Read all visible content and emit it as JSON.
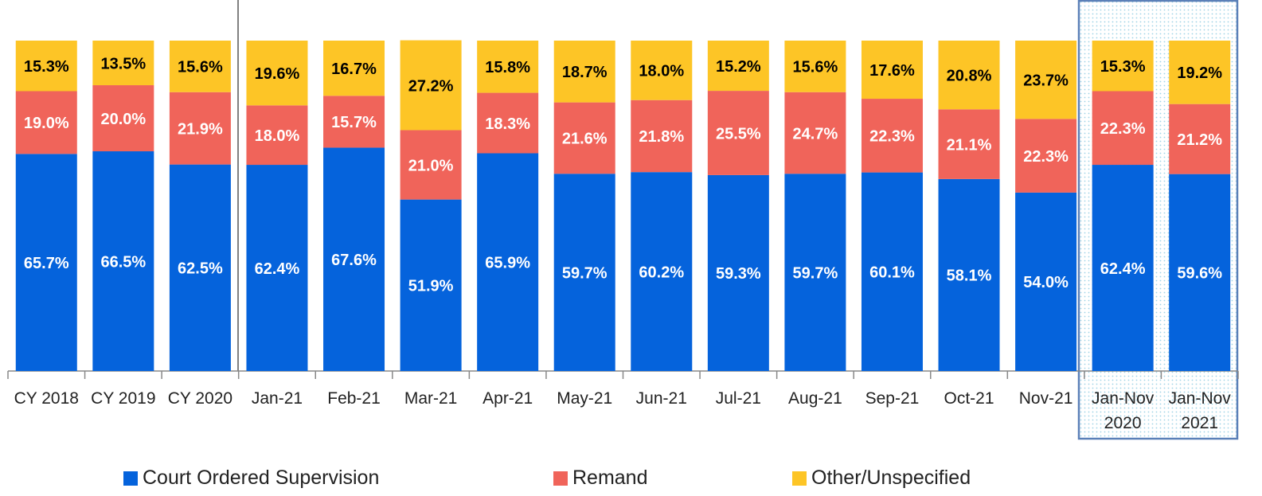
{
  "chart_data": {
    "type": "stacked_bar",
    "categories": [
      "CY 2018",
      "CY 2019",
      "CY 2020",
      "Jan-21",
      "Feb-21",
      "Mar-21",
      "Apr-21",
      "May-21",
      "Jun-21",
      "Jul-21",
      "Aug-21",
      "Sep-21",
      "Oct-21",
      "Nov-21",
      "Jan-Nov 2020",
      "Jan-Nov 2021"
    ],
    "ylim": [
      0,
      100
    ],
    "legend": "bottom",
    "series": [
      {
        "name": "Court Ordered Supervision",
        "color": "#0563dc",
        "values": [
          65.7,
          66.5,
          62.5,
          62.4,
          67.6,
          51.9,
          65.9,
          59.7,
          60.2,
          59.3,
          59.7,
          60.1,
          58.1,
          54.0,
          62.4,
          59.6
        ],
        "value_labels": [
          "65.7%",
          "66.5%",
          "62.5%",
          "62.4%",
          "67.6%",
          "51.9%",
          "65.9%",
          "59.7%",
          "60.2%",
          "59.3%",
          "59.7%",
          "60.1%",
          "58.1%",
          "54.0%",
          "62.4%",
          "59.6%"
        ]
      },
      {
        "name": "Remand",
        "color": "#f0645a",
        "values": [
          19.0,
          20.0,
          21.9,
          18.0,
          15.7,
          21.0,
          18.3,
          21.6,
          21.8,
          25.5,
          24.7,
          22.3,
          21.1,
          22.3,
          22.3,
          21.2
        ],
        "value_labels": [
          "19.0%",
          "20.0%",
          "21.9%",
          "18.0%",
          "15.7%",
          "21.0%",
          "18.3%",
          "21.6%",
          "21.8%",
          "25.5%",
          "24.7%",
          "22.3%",
          "21.1%",
          "22.3%",
          "22.3%",
          "21.2%"
        ]
      },
      {
        "name": "Other/Unspecified",
        "color": "#fdc526",
        "values": [
          15.3,
          13.5,
          15.6,
          19.6,
          16.7,
          27.2,
          15.8,
          18.7,
          18.0,
          15.2,
          15.6,
          17.6,
          20.8,
          23.7,
          15.3,
          19.2
        ],
        "value_labels": [
          "15.3%",
          "13.5%",
          "15.6%",
          "19.6%",
          "16.7%",
          "27.2%",
          "15.8%",
          "18.7%",
          "18.0%",
          "15.2%",
          "15.6%",
          "17.6%",
          "20.8%",
          "23.7%",
          "15.3%",
          "19.2%"
        ]
      }
    ]
  }
}
